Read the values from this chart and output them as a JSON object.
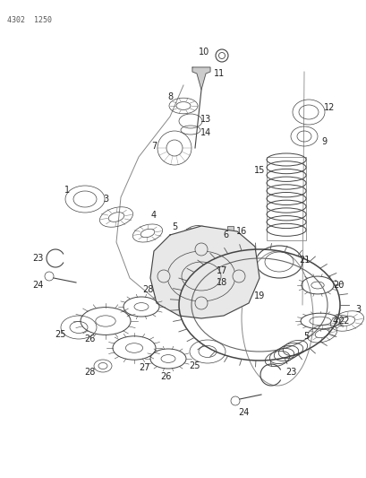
{
  "title_code": "4302 1250",
  "bg_color": "#ffffff",
  "lc": "#444444",
  "gc": "#666666",
  "fig_width": 4.1,
  "fig_height": 5.33,
  "dpi": 100
}
